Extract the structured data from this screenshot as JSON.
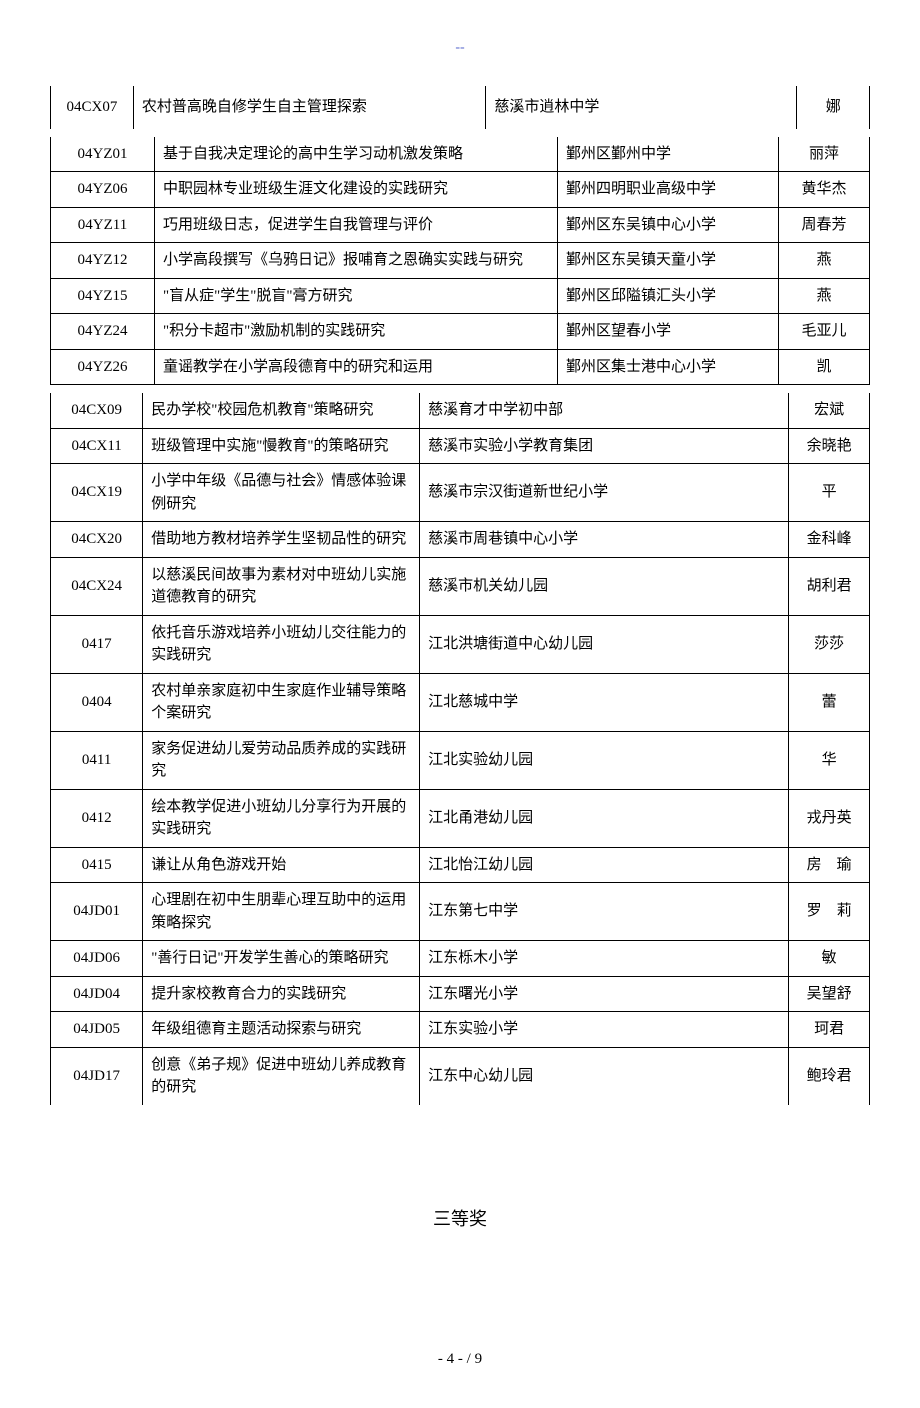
{
  "header_marker": "--",
  "table1": {
    "rows": [
      {
        "code": "04CX07",
        "title": "农村普高晚自修学生自主管理探索",
        "school": "慈溪市逍林中学",
        "person": "娜"
      }
    ]
  },
  "table2": {
    "rows": [
      {
        "code": "04YZ01",
        "title": "基于自我决定理论的高中生学习动机激发策略",
        "school": "鄞州区鄞州中学",
        "person": "丽萍"
      },
      {
        "code": "04YZ06",
        "title": "中职园林专业班级生涯文化建设的实践研究",
        "school": "鄞州四明职业高级中学",
        "person": "黄华杰"
      },
      {
        "code": "04YZ11",
        "title": "巧用班级日志，促进学生自我管理与评价",
        "school": "鄞州区东吴镇中心小学",
        "person": "周春芳"
      },
      {
        "code": "04YZ12",
        "title": "小学高段撰写《乌鸦日记》报哺育之恩确实实践与研究",
        "school": "鄞州区东吴镇天童小学",
        "person": "燕"
      },
      {
        "code": "04YZ15",
        "title": "\"盲从症\"学生\"脱盲\"膏方研究",
        "school": "鄞州区邱隘镇汇头小学",
        "person": "燕"
      },
      {
        "code": "04YZ24",
        "title": "\"积分卡超市\"激励机制的实践研究",
        "school": "鄞州区望春小学",
        "person": "毛亚儿"
      },
      {
        "code": "04YZ26",
        "title": "童谣教学在小学高段德育中的研究和运用",
        "school": "鄞州区集士港中心小学",
        "person": "凯"
      }
    ]
  },
  "table3": {
    "rows": [
      {
        "code": "04CX09",
        "title": "民办学校\"校园危机教育\"策略研究",
        "school": "慈溪育才中学初中部",
        "person": "宏斌"
      },
      {
        "code": "04CX11",
        "title": "班级管理中实施\"慢教育\"的策略研究",
        "school": "慈溪市实验小学教育集团",
        "person": "余晓艳"
      },
      {
        "code": "04CX19",
        "title": "小学中年级《品德与社会》情感体验课例研究",
        "school": "慈溪市宗汉街道新世纪小学",
        "person": "平"
      },
      {
        "code": "04CX20",
        "title": "借助地方教材培养学生坚韧品性的研究",
        "school": "慈溪市周巷镇中心小学",
        "person": "金科峰"
      },
      {
        "code": "04CX24",
        "title": "以慈溪民间故事为素材对中班幼儿实施道德教育的研究",
        "school": "慈溪市机关幼儿园",
        "person": "胡利君"
      },
      {
        "code": "0417",
        "title": "依托音乐游戏培养小班幼儿交往能力的实践研究",
        "school": "江北洪塘街道中心幼儿园",
        "person": "莎莎"
      },
      {
        "code": "0404",
        "title": "农村单亲家庭初中生家庭作业辅导策略个案研究",
        "school": "江北慈城中学",
        "person": "蕾"
      },
      {
        "code": "0411",
        "title": "家务促进幼儿爱劳动品质养成的实践研究",
        "school": "江北实验幼儿园",
        "person": "华"
      },
      {
        "code": "0412",
        "title": "绘本教学促进小班幼儿分享行为开展的实践研究",
        "school": "江北甬港幼儿园",
        "person": "戎丹英"
      },
      {
        "code": "0415",
        "title": "谦让从角色游戏开始",
        "school": "江北怡江幼儿园",
        "person": "房　瑜",
        "spaced": true
      },
      {
        "code": "04JD01",
        "title": "心理剧在初中生朋辈心理互助中的运用策略探究",
        "school": "江东第七中学",
        "person": "罗　莉",
        "spaced": true
      },
      {
        "code": "04JD06",
        "title": "\"善行日记\"开发学生善心的策略研究",
        "school": "江东栎木小学",
        "person": "敏"
      },
      {
        "code": "04JD04",
        "title": "提升家校教育合力的实践研究",
        "school": "江东曙光小学",
        "person": "吴望舒"
      },
      {
        "code": "04JD05",
        "title": "年级组德育主题活动探索与研究",
        "school": "江东实验小学",
        "person": "珂君"
      },
      {
        "code": "04JD17",
        "title": "创意《弟子规》促进中班幼儿养成教育的研究",
        "school": "江东中心幼儿园",
        "person": "鲍玲君"
      }
    ]
  },
  "section_title": "三等奖",
  "footer": "- 4 -  / 9"
}
